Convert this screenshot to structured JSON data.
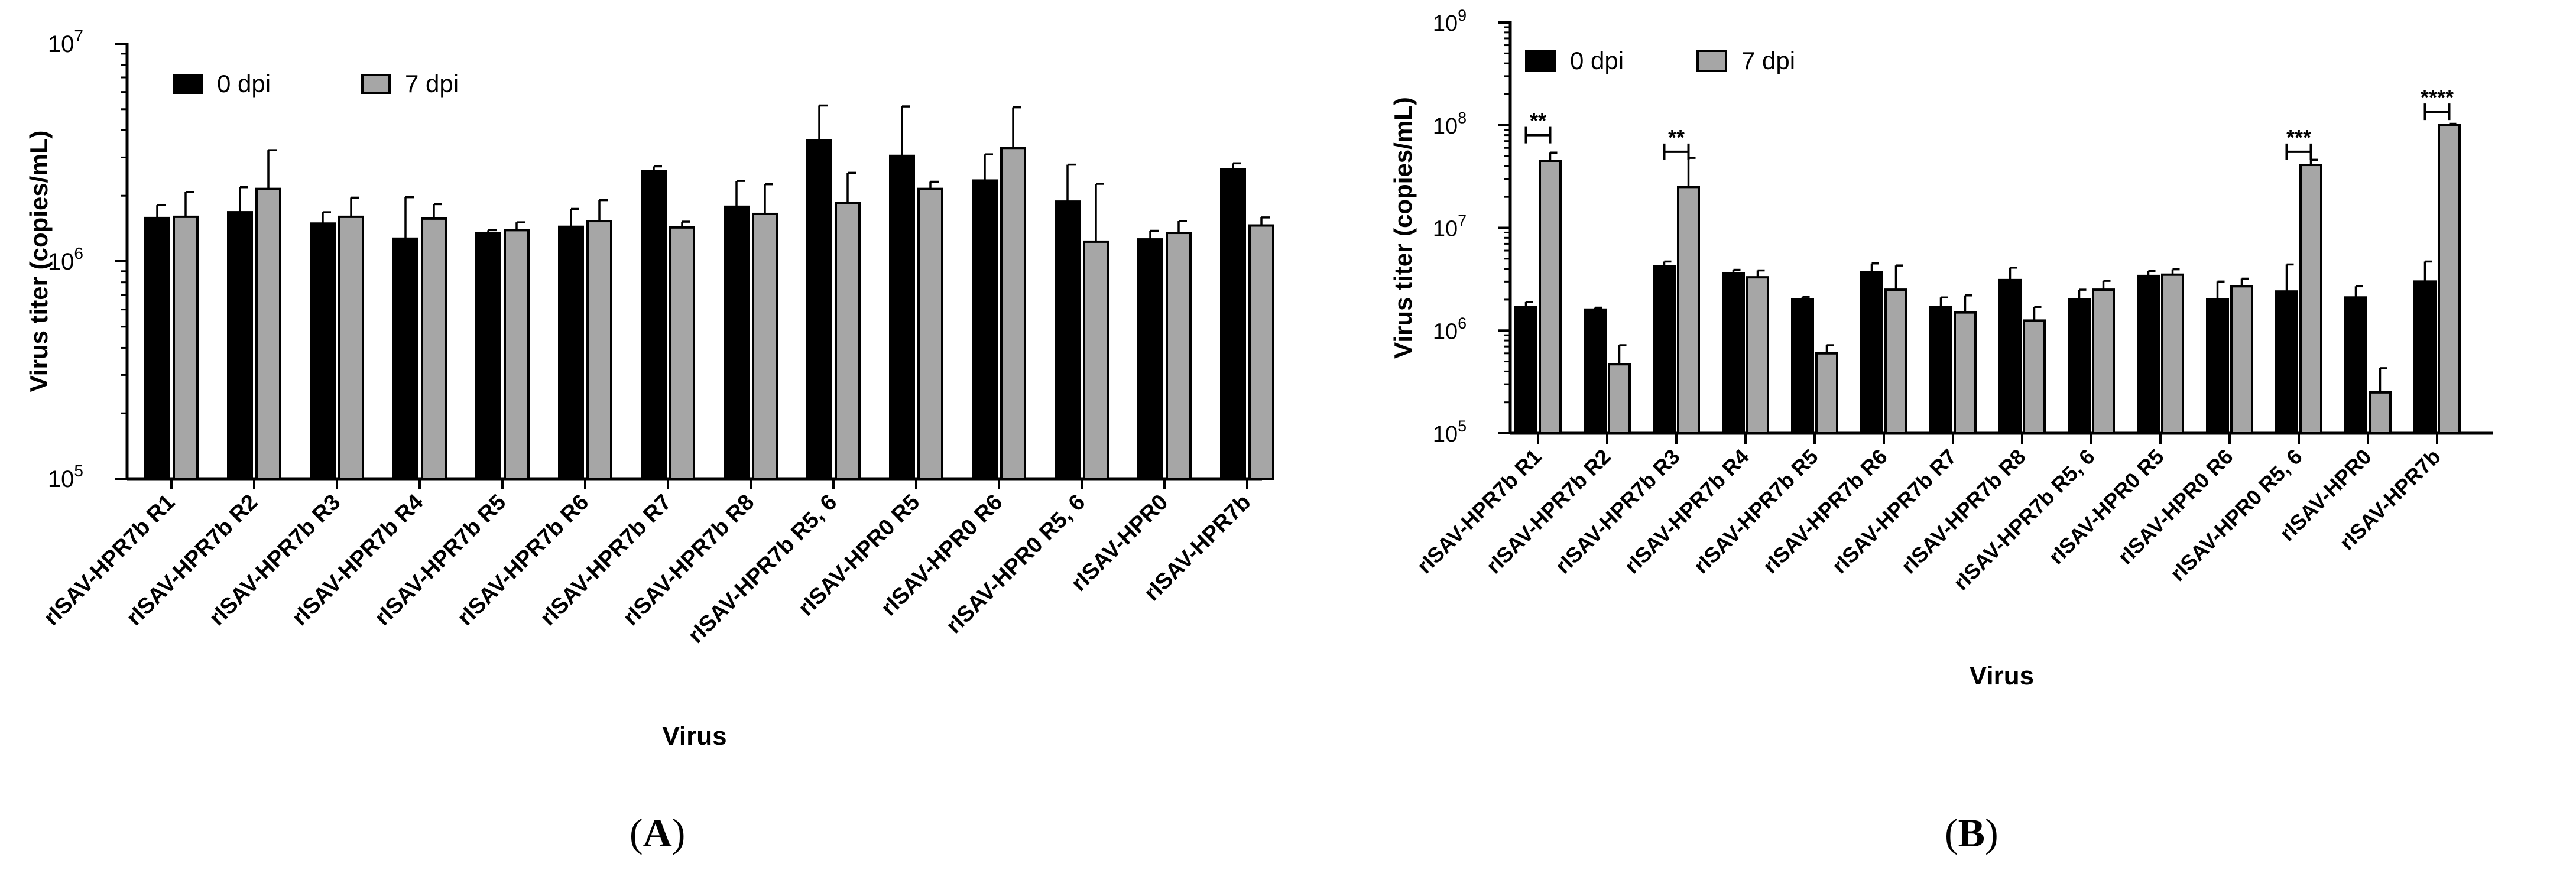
{
  "chart_data": [
    {
      "type": "bar",
      "panel": "A",
      "title": "",
      "xlabel": "Virus",
      "ylabel": "Virus titer (copies/mL)",
      "yscale": "log",
      "ylim": [
        100000,
        10000000
      ],
      "yticks": [
        {
          "value": 100000,
          "base": "10",
          "exp": "5"
        },
        {
          "value": 1000000,
          "base": "10",
          "exp": "6"
        },
        {
          "value": 10000000,
          "base": "10",
          "exp": "7"
        }
      ],
      "legend_position": "top-left",
      "categories": [
        "rISAV-HPR7b R1",
        "rISAV-HPR7b R2",
        "rISAV-HPR7b R3",
        "rISAV-HPR7b R4",
        "rISAV-HPR7b R5",
        "rISAV-HPR7b R6",
        "rISAV-HPR7b R7",
        "rISAV-HPR7b R8",
        "rISAV-HPR7b R5, 6",
        "rISAV-HPR0 R5",
        "rISAV-HPR0 R6",
        "rISAV-HPR0 R5, 6",
        "rISAV-HPR0",
        "rISAV-HPR7b"
      ],
      "series": [
        {
          "name": "0 dpi",
          "color": "#000000",
          "values": [
            1580000,
            1680000,
            1490000,
            1270000,
            1350000,
            1440000,
            2600000,
            1780000,
            3600000,
            3050000,
            2350000,
            1880000,
            1260000,
            2650000
          ],
          "err": [
            230000,
            510000,
            190000,
            700000,
            40000,
            300000,
            130000,
            560000,
            1600000,
            2100000,
            750000,
            900000,
            120000,
            170000
          ]
        },
        {
          "name": "7 dpi",
          "color": "#a6a6a6",
          "values": [
            1600000,
            2150000,
            1600000,
            1570000,
            1390000,
            1530000,
            1430000,
            1650000,
            1850000,
            2150000,
            3320000,
            1230000,
            1350000,
            1460000
          ],
          "err": [
            480000,
            1090000,
            360000,
            260000,
            120000,
            380000,
            90000,
            610000,
            700000,
            170000,
            1780000,
            1040000,
            180000,
            130000
          ]
        }
      ],
      "annotations": []
    },
    {
      "type": "bar",
      "panel": "B",
      "title": "",
      "xlabel": "Virus",
      "ylabel": "Virus titer (copies/mL)",
      "yscale": "log",
      "ylim": [
        100000,
        1000000000
      ],
      "yticks": [
        {
          "value": 100000,
          "base": "10",
          "exp": "5"
        },
        {
          "value": 1000000,
          "base": "10",
          "exp": "6"
        },
        {
          "value": 10000000,
          "base": "10",
          "exp": "7"
        },
        {
          "value": 100000000,
          "base": "10",
          "exp": "8"
        },
        {
          "value": 1000000000,
          "base": "10",
          "exp": "9"
        }
      ],
      "legend_position": "top-left",
      "categories": [
        "rISAV-HPR7b R1",
        "rISAV-HPR7b R2",
        "rISAV-HPR7b R3",
        "rISAV-HPR7b R4",
        "rISAV-HPR7b R5",
        "rISAV-HPR7b R6",
        "rISAV-HPR7b R7",
        "rISAV-HPR7b R8",
        "rISAV-HPR7b R5, 6",
        "rISAV-HPR0 R5",
        "rISAV-HPR0 R6",
        "rISAV-HPR0 R5, 6",
        "rISAV-HPR0",
        "rISAV-HPR7b"
      ],
      "series": [
        {
          "name": "0 dpi",
          "color": "#000000",
          "values": [
            1700000,
            1600000,
            4200000,
            3600000,
            2000000,
            3700000,
            1700000,
            3100000,
            2000000,
            3400000,
            2000000,
            2400000,
            2100000,
            3000000
          ],
          "err": [
            200000,
            70000,
            500000,
            300000,
            130000,
            800000,
            400000,
            1000000,
            500000,
            400000,
            1000000,
            2000000,
            600000,
            1700000
          ]
        },
        {
          "name": "7 dpi",
          "color": "#a6a6a6",
          "values": [
            45000000,
            470000,
            25000000,
            3300000,
            600000,
            2500000,
            1500000,
            1250000,
            2500000,
            3500000,
            2700000,
            41000000,
            250000,
            100000000
          ],
          "err": [
            9000000,
            250000,
            23000000,
            550000,
            120000,
            1800000,
            700000,
            450000,
            550000,
            450000,
            500000,
            5000000,
            180000,
            3000000
          ]
        }
      ],
      "annotations": [
        {
          "category_index": 0,
          "label": "**",
          "y": 80000000
        },
        {
          "category_index": 2,
          "label": "**",
          "y": 55000000
        },
        {
          "category_index": 11,
          "label": "***",
          "y": 55000000
        },
        {
          "category_index": 13,
          "label": "****",
          "y": 135000000
        }
      ]
    }
  ],
  "panel_labels": {
    "a": "A",
    "b": "B"
  }
}
